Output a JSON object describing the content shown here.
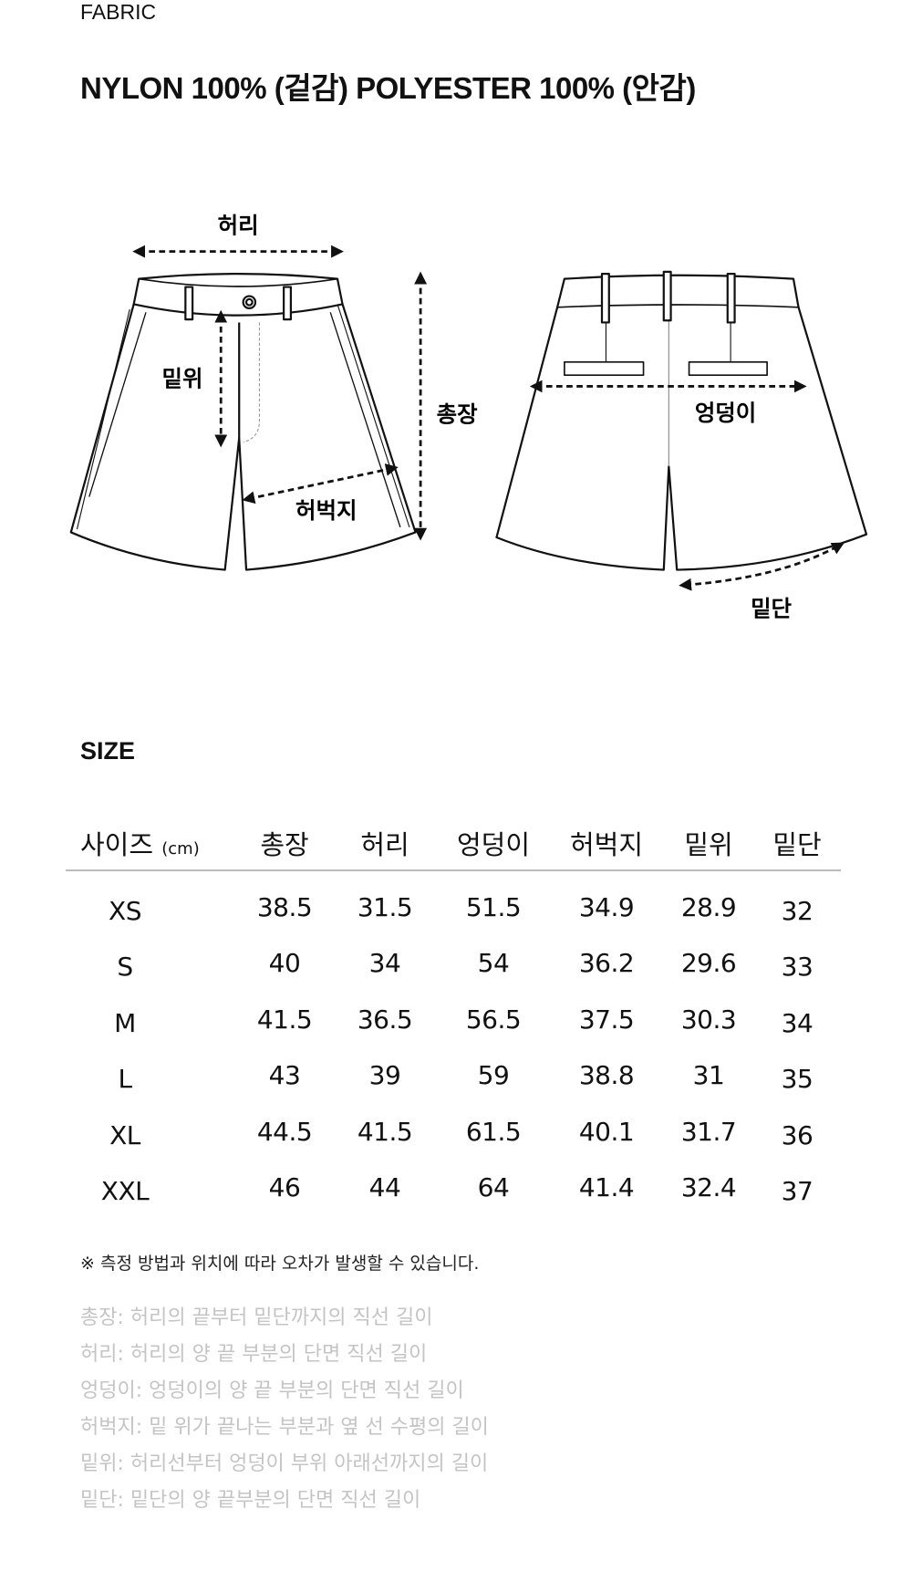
{
  "fabric": {
    "label": "FABRIC",
    "value": "NYLON 100% (겉감) POLYESTER 100% (안감)"
  },
  "diagram": {
    "front_labels": {
      "waist": "허리",
      "rise": "밑위",
      "length": "총장",
      "thigh": "허벅지"
    },
    "back_labels": {
      "hip": "엉덩이",
      "hem": "밑단"
    }
  },
  "size": {
    "title": "SIZE",
    "header_first": "사이즈",
    "header_unit": "(cm)",
    "columns": [
      "총장",
      "허리",
      "엉덩이",
      "허벅지",
      "밑위",
      "밑단"
    ],
    "rows": [
      {
        "size": "XS",
        "values": [
          "38.5",
          "31.5",
          "51.5",
          "34.9",
          "28.9",
          "32"
        ]
      },
      {
        "size": "S",
        "values": [
          "40",
          "34",
          "54",
          "36.2",
          "29.6",
          "33"
        ]
      },
      {
        "size": "M",
        "values": [
          "41.5",
          "36.5",
          "56.5",
          "37.5",
          "30.3",
          "34"
        ]
      },
      {
        "size": "L",
        "values": [
          "43",
          "39",
          "59",
          "38.8",
          "31",
          "35"
        ]
      },
      {
        "size": "XL",
        "values": [
          "44.5",
          "41.5",
          "61.5",
          "40.1",
          "31.7",
          "36"
        ]
      },
      {
        "size": "XXL",
        "values": [
          "46",
          "44",
          "64",
          "41.4",
          "32.4",
          "37"
        ]
      }
    ]
  },
  "note": "※ 측정 방법과 위치에 따라 오차가 발생할 수 있습니다.",
  "definitions": [
    "총장: 허리의 끝부터 밑단까지의 직선 길이",
    "허리: 허리의 양 끝  부분의 단면 직선 길이",
    "엉덩이: 엉덩이의 양 끝 부분의 단면 직선 길이",
    "허벅지: 밑 위가 끝나는 부분과 옆 선 수평의 길이",
    "밑위: 허리선부터 엉덩이 부위 아래선까지의 길이",
    "밑단: 밑단의 양 끝부분의 단면 직선 길이"
  ]
}
